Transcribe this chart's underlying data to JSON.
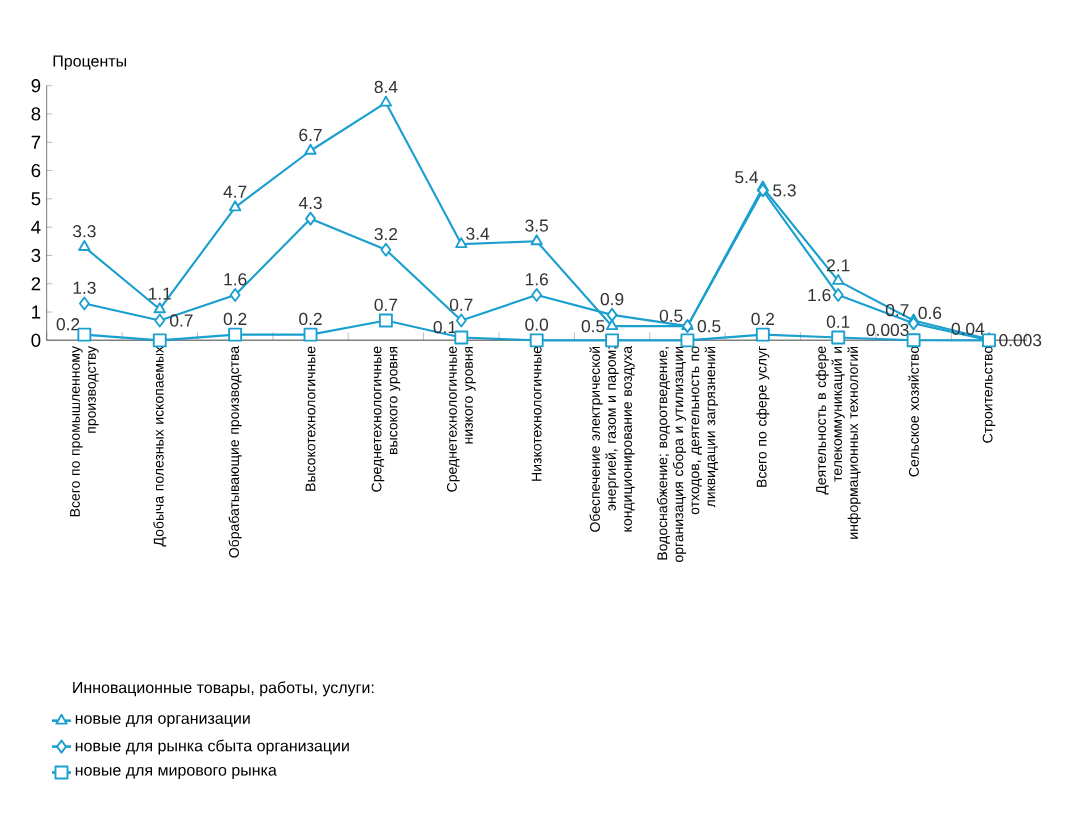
{
  "chart_data": {
    "type": "line",
    "ylabel": "Проценты",
    "legend_title": "Инновационные товары, работы, услуги:",
    "categories": [
      "Всего по промышленному производству",
      "Добыча полезных ископаемых",
      "Обрабатывающие производства",
      "Высокотехнологичные",
      "Среднетехнологичные высокого уровня",
      "Среднетехнологичные низкого уровня",
      "Низкотехнологичные",
      "Обеспечение электрической энергией, газом и паром; кондиционирование воздуха",
      "Водоснабжение; водоотведение, организация сбора и утилизации отходов, деятельность по ликвидации загрязнений",
      "Всего по сфере услуг",
      "Деятельность в сфере телекоммуникаций и информационных технологий",
      "Сельское хозяйство",
      "Строительство"
    ],
    "series": [
      {
        "name": "новые для организации",
        "color": "#1a9fcf",
        "marker": "triangle",
        "values": [
          3.3,
          1.1,
          4.7,
          6.7,
          8.4,
          3.4,
          3.5,
          0.5,
          0.5,
          5.4,
          2.1,
          0.7,
          0.04
        ],
        "value_labels": [
          "3.3",
          "1.1",
          "4.7",
          "6.7",
          "8.4",
          "3.4",
          "3.5",
          "0.5",
          "0.5",
          "5.4",
          "2.1",
          "0.7",
          "0.04"
        ]
      },
      {
        "name": "новые для рынка сбыта организации",
        "color": "#1a9fcf",
        "marker": "diamond",
        "values": [
          1.3,
          0.7,
          1.6,
          4.3,
          3.2,
          0.7,
          1.6,
          0.9,
          0.5,
          5.3,
          1.6,
          0.6,
          0.003
        ],
        "value_labels": [
          "1.3",
          "0.7",
          "1.6",
          "4.3",
          "3.2",
          "0.7",
          "1.6",
          "0.9",
          "0.5",
          "5.3",
          "1.6",
          "0.6",
          "0.003"
        ]
      },
      {
        "name": "новые для мирового рынка",
        "color": "#1a9fcf",
        "marker": "square",
        "values": [
          0.2,
          0.0,
          0.2,
          0.2,
          0.7,
          0.1,
          0.0,
          0.0,
          0.0,
          0.2,
          0.1,
          0.003,
          0.0
        ],
        "value_labels": [
          "0.2",
          null,
          "0.2",
          "0.2",
          "0.7",
          "0.1",
          "0.0",
          null,
          null,
          "0.2",
          "0.1",
          "0.003",
          null
        ]
      }
    ],
    "ylim": [
      0,
      9
    ],
    "yticks": [
      0,
      1,
      2,
      3,
      4,
      5,
      6,
      7,
      8,
      9
    ],
    "legend": "bottom left",
    "grid": false,
    "line_style": "solid"
  }
}
